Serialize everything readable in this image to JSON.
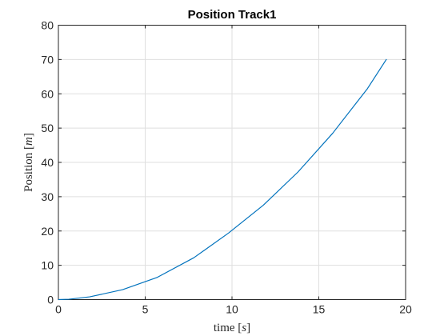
{
  "chart_data": {
    "type": "line",
    "title": "Position Track1",
    "xlabel": {
      "prefix": "time ",
      "open": "[",
      "unit": "s",
      "close": "]"
    },
    "ylabel": {
      "prefix": "Position ",
      "open": "[",
      "unit": "m",
      "close": "]"
    },
    "xlim": [
      0,
      20
    ],
    "ylim": [
      0,
      80
    ],
    "xticks": [
      0,
      5,
      10,
      15,
      20
    ],
    "yticks": [
      0,
      10,
      20,
      30,
      40,
      50,
      60,
      70,
      80
    ],
    "grid": true,
    "series": [
      {
        "color": "#0072bd",
        "x": [
          0,
          0.6,
          1.8,
          3.7,
          5.7,
          7.8,
          9.8,
          11.8,
          13.8,
          15.8,
          17.8,
          18.9
        ],
        "y": [
          0,
          0.1,
          0.8,
          2.9,
          6.5,
          12.2,
          19.4,
          27.5,
          37.2,
          48.5,
          61.5,
          70.1
        ]
      }
    ]
  }
}
